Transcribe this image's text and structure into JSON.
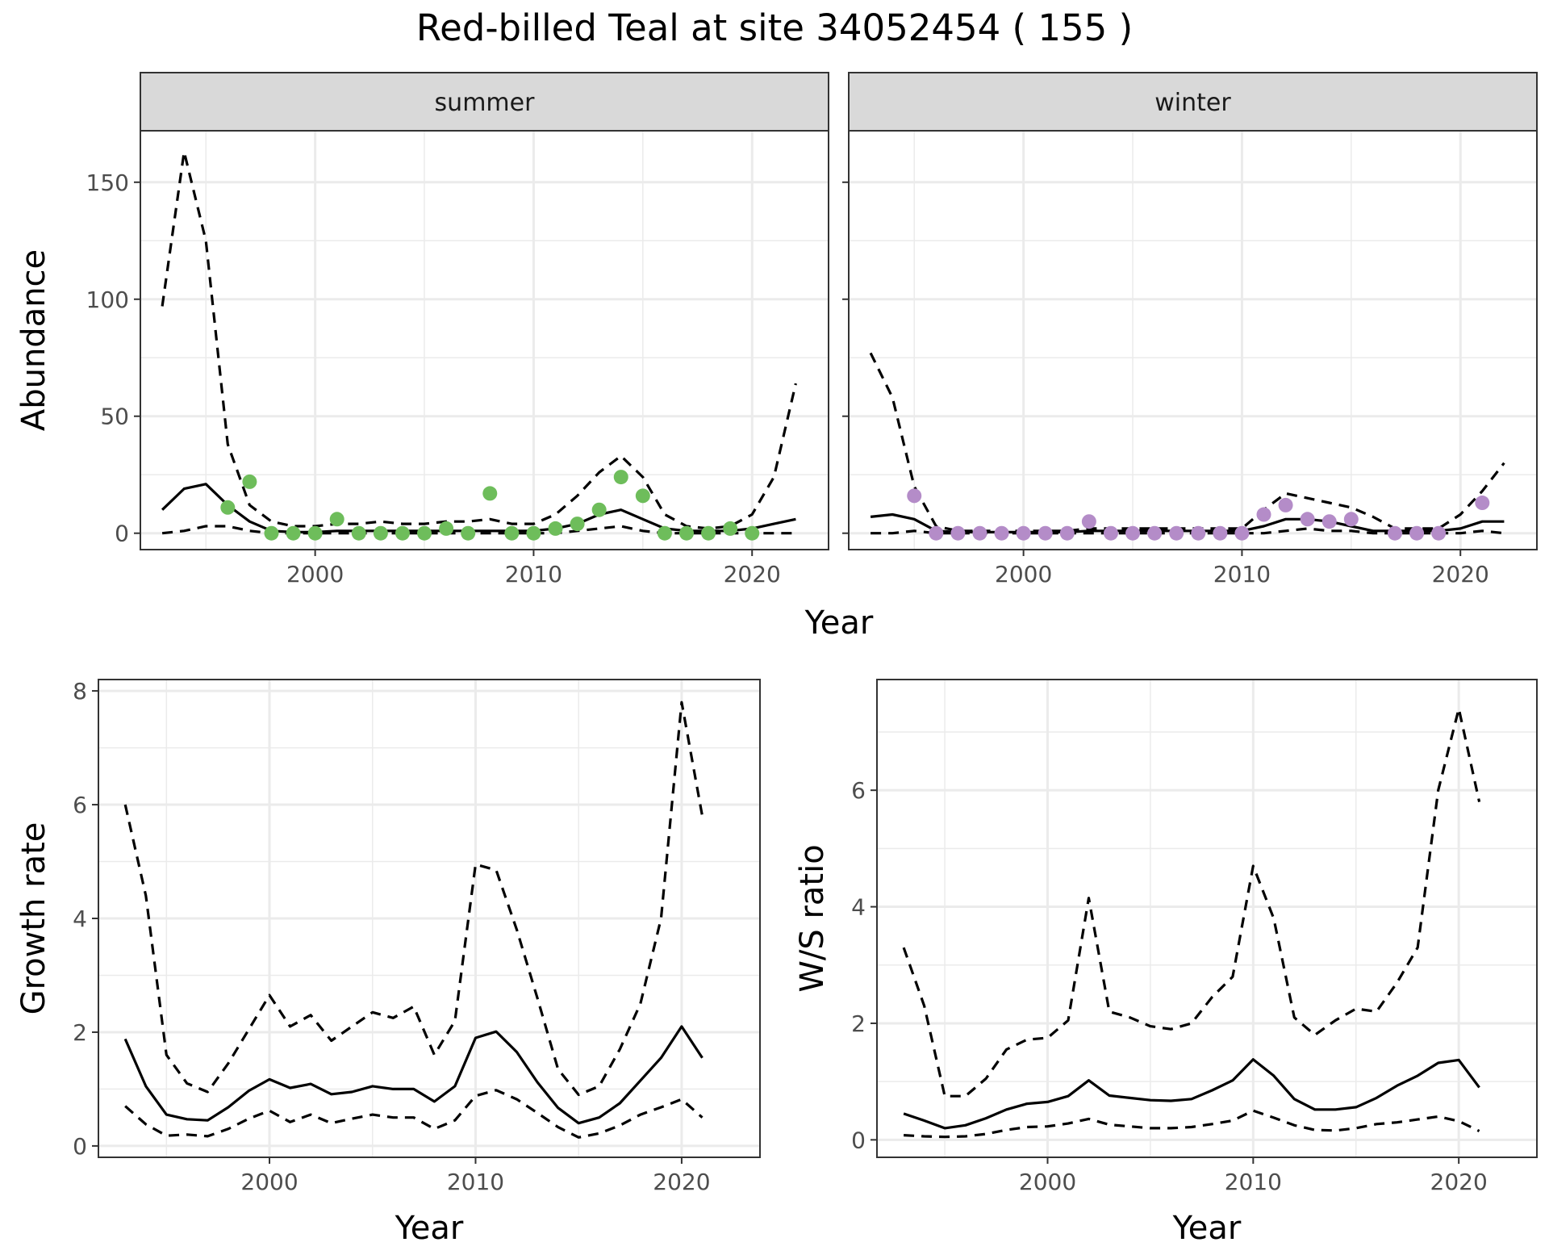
{
  "title": "Red-billed Teal at site 34052454 ( 155 )",
  "colors": {
    "summer_points": "#6ebd5b",
    "winter_points": "#b48cc8",
    "strip_bg": "#d9d9d9",
    "grid": "#ebebeb",
    "lines": "#000000"
  },
  "chart_data": [
    {
      "type": "line",
      "facet": "summer",
      "xlabel": "Year",
      "ylabel": "Abundance",
      "xlim": [
        1992,
        2023.5
      ],
      "ylim": [
        -7,
        172
      ],
      "x_ticks": [
        2000,
        2010,
        2020
      ],
      "y_ticks": [
        0,
        50,
        100,
        150
      ],
      "grid": true,
      "series": [
        {
          "style": "dashed",
          "x": [
            1993,
            1994,
            1995,
            1996,
            1997,
            1998,
            1999,
            2000,
            2001,
            2002,
            2003,
            2004,
            2005,
            2006,
            2007,
            2008,
            2009,
            2010,
            2011,
            2012,
            2013,
            2014,
            2015,
            2016,
            2017,
            2018,
            2019,
            2020,
            2021,
            2022
          ],
          "values": [
            97,
            163,
            125,
            38,
            12,
            5,
            3,
            3,
            4,
            4,
            5,
            4,
            4,
            5,
            5,
            6,
            4,
            4,
            8,
            16,
            26,
            33,
            24,
            8,
            3,
            2,
            3,
            8,
            24,
            64
          ]
        },
        {
          "style": "solid",
          "x": [
            1993,
            1994,
            1995,
            1996,
            1997,
            1998,
            1999,
            2000,
            2001,
            2002,
            2003,
            2004,
            2005,
            2006,
            2007,
            2008,
            2009,
            2010,
            2011,
            2012,
            2013,
            2014,
            2015,
            2016,
            2017,
            2018,
            2019,
            2020,
            2021,
            2022
          ],
          "values": [
            10,
            19,
            21,
            12,
            5,
            1,
            0.5,
            0.5,
            1,
            1,
            1,
            1,
            1,
            1,
            1,
            1,
            1,
            1,
            2,
            4,
            8,
            10,
            6,
            2,
            1,
            1,
            1,
            2,
            4,
            6
          ]
        },
        {
          "style": "dashed",
          "x": [
            1993,
            1994,
            1995,
            1996,
            1997,
            1998,
            1999,
            2000,
            2001,
            2002,
            2003,
            2004,
            2005,
            2006,
            2007,
            2008,
            2009,
            2010,
            2011,
            2012,
            2013,
            2014,
            2015,
            2016,
            2017,
            2018,
            2019,
            2020,
            2021,
            2022
          ],
          "values": [
            0,
            1,
            3,
            3,
            1,
            0,
            0,
            0,
            0,
            0,
            0,
            0,
            0,
            0,
            0,
            0,
            0,
            0,
            0,
            1,
            2,
            3,
            1,
            0,
            0,
            0,
            0,
            0,
            0,
            0
          ]
        },
        {
          "style": "points",
          "x": [
            1996,
            1997,
            1998,
            1999,
            2000,
            2001,
            2002,
            2003,
            2004,
            2005,
            2006,
            2007,
            2008,
            2009,
            2010,
            2011,
            2012,
            2013,
            2014,
            2015,
            2016,
            2017,
            2018,
            2019,
            2020
          ],
          "values": [
            11,
            22,
            0,
            0,
            0,
            6,
            0,
            0,
            0,
            0,
            2,
            0,
            17,
            0,
            0,
            2,
            4,
            10,
            24,
            16,
            0,
            0,
            0,
            2,
            0
          ]
        }
      ]
    },
    {
      "type": "line",
      "facet": "winter",
      "xlabel": "Year",
      "ylabel": "Abundance",
      "xlim": [
        1992,
        2023.5
      ],
      "ylim": [
        -7,
        172
      ],
      "x_ticks": [
        2000,
        2010,
        2020
      ],
      "y_ticks": [
        0,
        50,
        100,
        150
      ],
      "grid": true,
      "series": [
        {
          "style": "dashed",
          "x": [
            1993,
            1994,
            1995,
            1996,
            1997,
            1998,
            1999,
            2000,
            2001,
            2002,
            2003,
            2004,
            2005,
            2006,
            2007,
            2008,
            2009,
            2010,
            2011,
            2012,
            2013,
            2014,
            2015,
            2016,
            2017,
            2018,
            2019,
            2020,
            2021,
            2022
          ],
          "values": [
            77,
            58,
            20,
            3,
            1,
            1,
            1,
            1,
            1,
            1,
            2,
            2,
            2,
            2,
            2,
            2,
            2,
            2,
            10,
            17,
            15,
            13,
            11,
            7,
            2,
            2,
            2,
            8,
            18,
            30
          ]
        },
        {
          "style": "solid",
          "x": [
            1993,
            1994,
            1995,
            1996,
            1997,
            1998,
            1999,
            2000,
            2001,
            2002,
            2003,
            2004,
            2005,
            2006,
            2007,
            2008,
            2009,
            2010,
            2011,
            2012,
            2013,
            2014,
            2015,
            2016,
            2017,
            2018,
            2019,
            2020,
            2021,
            2022
          ],
          "values": [
            7,
            8,
            6,
            1,
            0.5,
            0.5,
            0.5,
            0.5,
            0.5,
            0.5,
            1,
            1,
            1,
            1,
            1,
            1,
            1,
            1,
            3,
            6,
            6,
            5,
            3,
            1,
            1,
            1,
            1,
            2,
            5,
            5
          ]
        },
        {
          "style": "dashed",
          "x": [
            1993,
            1994,
            1995,
            1996,
            1997,
            1998,
            1999,
            2000,
            2001,
            2002,
            2003,
            2004,
            2005,
            2006,
            2007,
            2008,
            2009,
            2010,
            2011,
            2012,
            2013,
            2014,
            2015,
            2016,
            2017,
            2018,
            2019,
            2020,
            2021,
            2022
          ],
          "values": [
            0,
            0,
            1,
            0,
            0,
            0,
            0,
            0,
            0,
            0,
            0,
            0,
            0,
            0,
            0,
            0,
            0,
            0,
            0,
            1,
            2,
            1,
            1,
            0,
            0,
            0,
            0,
            0,
            1,
            0
          ]
        },
        {
          "style": "points",
          "x": [
            1995,
            1996,
            1997,
            1998,
            1999,
            2000,
            2001,
            2002,
            2003,
            2004,
            2005,
            2006,
            2007,
            2008,
            2009,
            2010,
            2011,
            2012,
            2013,
            2014,
            2015,
            2017,
            2018,
            2019,
            2021
          ],
          "values": [
            16,
            0,
            0,
            0,
            0,
            0,
            0,
            0,
            5,
            0,
            0,
            0,
            0,
            0,
            0,
            0,
            8,
            12,
            6,
            5,
            6,
            0,
            0,
            0,
            13
          ]
        }
      ]
    },
    {
      "type": "line",
      "facet": "",
      "xlabel": "Year",
      "ylabel": "Growth rate",
      "xlim": [
        1991.7,
        2023.8
      ],
      "ylim": [
        -0.2,
        8.2
      ],
      "x_ticks": [
        2000,
        2010,
        2020
      ],
      "y_ticks": [
        0,
        2,
        4,
        6,
        8
      ],
      "grid": true,
      "series": [
        {
          "style": "dashed",
          "x": [
            1993,
            1994,
            1995,
            1996,
            1997,
            1998,
            1999,
            2000,
            2001,
            2002,
            2003,
            2004,
            2005,
            2006,
            2007,
            2008,
            2009,
            2010,
            2011,
            2012,
            2013,
            2014,
            2015,
            2016,
            2017,
            2018,
            2019,
            2020,
            2021
          ],
          "values": [
            6.0,
            4.4,
            1.6,
            1.1,
            0.95,
            1.45,
            2.05,
            2.65,
            2.1,
            2.3,
            1.85,
            2.1,
            2.35,
            2.25,
            2.45,
            1.6,
            2.2,
            4.95,
            4.85,
            3.8,
            2.6,
            1.35,
            0.9,
            1.05,
            1.7,
            2.5,
            4.0,
            7.8,
            5.8
          ]
        },
        {
          "style": "solid",
          "x": [
            1993,
            1994,
            1995,
            1996,
            1997,
            1998,
            1999,
            2000,
            2001,
            2002,
            2003,
            2004,
            2005,
            2006,
            2007,
            2008,
            2009,
            2010,
            2011,
            2012,
            2013,
            2014,
            2015,
            2016,
            2017,
            2018,
            2019,
            2020,
            2021
          ],
          "values": [
            1.88,
            1.05,
            0.55,
            0.47,
            0.45,
            0.68,
            0.97,
            1.17,
            1.02,
            1.09,
            0.91,
            0.95,
            1.05,
            1.0,
            1.0,
            0.78,
            1.05,
            1.9,
            2.01,
            1.65,
            1.12,
            0.67,
            0.4,
            0.5,
            0.75,
            1.15,
            1.55,
            2.1,
            1.55
          ]
        },
        {
          "style": "dashed",
          "x": [
            1993,
            1994,
            1995,
            1996,
            1997,
            1998,
            1999,
            2000,
            2001,
            2002,
            2003,
            2004,
            2005,
            2006,
            2007,
            2008,
            2009,
            2010,
            2011,
            2012,
            2013,
            2014,
            2015,
            2016,
            2017,
            2018,
            2019,
            2020,
            2021
          ],
          "values": [
            0.7,
            0.38,
            0.18,
            0.2,
            0.17,
            0.3,
            0.48,
            0.62,
            0.42,
            0.55,
            0.4,
            0.48,
            0.55,
            0.5,
            0.5,
            0.3,
            0.45,
            0.88,
            0.98,
            0.82,
            0.58,
            0.33,
            0.15,
            0.22,
            0.36,
            0.55,
            0.68,
            0.82,
            0.5
          ]
        }
      ]
    },
    {
      "type": "line",
      "facet": "",
      "xlabel": "Year",
      "ylabel": "W/S ratio",
      "xlim": [
        1991.7,
        2023.8
      ],
      "ylim": [
        -0.3,
        7.9
      ],
      "x_ticks": [
        2000,
        2010,
        2020
      ],
      "y_ticks": [
        0,
        2,
        4,
        6
      ],
      "grid": true,
      "series": [
        {
          "style": "dashed",
          "x": [
            1993,
            1994,
            1995,
            1996,
            1997,
            1998,
            1999,
            2000,
            2001,
            2002,
            2003,
            2004,
            2005,
            2006,
            2007,
            2008,
            2009,
            2010,
            2011,
            2012,
            2013,
            2014,
            2015,
            2016,
            2017,
            2018,
            2019,
            2020,
            2021
          ],
          "values": [
            3.3,
            2.3,
            0.75,
            0.75,
            1.05,
            1.55,
            1.72,
            1.75,
            2.05,
            4.15,
            2.2,
            2.1,
            1.95,
            1.9,
            2.0,
            2.45,
            2.8,
            4.7,
            3.8,
            2.1,
            1.8,
            2.05,
            2.25,
            2.2,
            2.7,
            3.3,
            6.0,
            7.4,
            5.8
          ]
        },
        {
          "style": "solid",
          "x": [
            1993,
            1994,
            1995,
            1996,
            1997,
            1998,
            1999,
            2000,
            2001,
            2002,
            2003,
            2004,
            2005,
            2006,
            2007,
            2008,
            2009,
            2010,
            2011,
            2012,
            2013,
            2014,
            2015,
            2016,
            2017,
            2018,
            2019,
            2020,
            2021
          ],
          "values": [
            0.45,
            0.33,
            0.2,
            0.25,
            0.37,
            0.52,
            0.62,
            0.65,
            0.75,
            1.02,
            0.76,
            0.72,
            0.68,
            0.67,
            0.7,
            0.85,
            1.02,
            1.38,
            1.1,
            0.7,
            0.52,
            0.52,
            0.56,
            0.72,
            0.93,
            1.1,
            1.32,
            1.37,
            0.9
          ]
        },
        {
          "style": "dashed",
          "x": [
            1993,
            1994,
            1995,
            1996,
            1997,
            1998,
            1999,
            2000,
            2001,
            2002,
            2003,
            2004,
            2005,
            2006,
            2007,
            2008,
            2009,
            2010,
            2011,
            2012,
            2013,
            2014,
            2015,
            2016,
            2017,
            2018,
            2019,
            2020,
            2021
          ],
          "values": [
            0.08,
            0.06,
            0.05,
            0.06,
            0.1,
            0.17,
            0.22,
            0.23,
            0.28,
            0.36,
            0.26,
            0.23,
            0.2,
            0.2,
            0.22,
            0.27,
            0.33,
            0.5,
            0.38,
            0.25,
            0.17,
            0.16,
            0.2,
            0.27,
            0.3,
            0.35,
            0.4,
            0.32,
            0.15
          ]
        }
      ]
    }
  ]
}
